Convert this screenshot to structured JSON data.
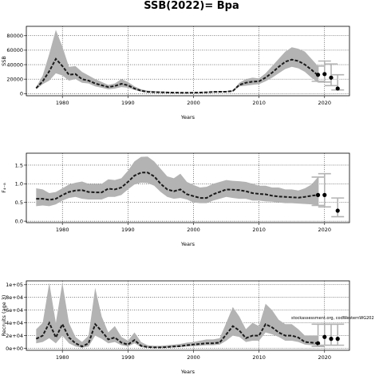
{
  "title": "SSB(2022)= Bpa",
  "chart_data": [
    {
      "type": "line",
      "ylabel": "SSB",
      "xlabel": "Years",
      "xlim": [
        1974.5,
        2023.8
      ],
      "ylim": [
        -3000,
        93000
      ],
      "xticks": [
        1980,
        1990,
        2000,
        2010,
        2020
      ],
      "yticks": [
        0,
        20000,
        40000,
        60000,
        80000
      ],
      "ytick_labels": [
        "0",
        "20000",
        "40000",
        "60000",
        "80000"
      ],
      "grid": true,
      "band": {
        "x": [
          1976,
          1977,
          1978,
          1979,
          1980,
          1981,
          1982,
          1983,
          1984,
          1985,
          1986,
          1987,
          1988,
          1989,
          1990,
          1991,
          1992,
          1993,
          1994,
          1995,
          1996,
          1997,
          1998,
          1999,
          2000,
          2001,
          2002,
          2003,
          2004,
          2005,
          2006,
          2007,
          2008,
          2009,
          2010,
          2011,
          2012,
          2013,
          2014,
          2015,
          2016,
          2017,
          2018,
          2019
        ],
        "upper": [
          9000,
          25000,
          55000,
          88000,
          65000,
          37000,
          38000,
          30000,
          25000,
          20000,
          16000,
          12000,
          14000,
          20000,
          16000,
          10000,
          6000,
          4000,
          3500,
          3000,
          2500,
          2200,
          2000,
          2000,
          2000,
          2200,
          2500,
          3200,
          3500,
          3600,
          4500,
          15000,
          20000,
          22000,
          21000,
          28000,
          38000,
          48000,
          58000,
          64000,
          62000,
          58000,
          48000,
          38000
        ],
        "lower": [
          6000,
          13000,
          18000,
          28000,
          25000,
          18000,
          20000,
          15000,
          14000,
          10000,
          8000,
          6000,
          7000,
          9000,
          8000,
          5000,
          2500,
          1500,
          1200,
          1000,
          900,
          800,
          700,
          700,
          700,
          900,
          1100,
          1500,
          1700,
          1800,
          2500,
          10000,
          11000,
          12000,
          13000,
          17000,
          22000,
          28000,
          34000,
          37000,
          35000,
          30000,
          22000,
          15000
        ]
      },
      "series": [
        {
          "x": [
            1976,
            1977,
            1978,
            1979,
            1980,
            1981,
            1982,
            1983,
            1984,
            1985,
            1986,
            1987,
            1988,
            1989,
            1990,
            1991,
            1992,
            1993,
            1994,
            1995,
            1996,
            1997,
            1998,
            1999,
            2000,
            2001,
            2002,
            2003,
            2004,
            2005,
            2006,
            2007,
            2008,
            2009,
            2010,
            2011,
            2012,
            2013,
            2014,
            2015,
            2016,
            2017,
            2018,
            2019
          ],
          "y": [
            7500,
            17000,
            31000,
            48000,
            38000,
            26000,
            27000,
            20000,
            18000,
            14000,
            11500,
            9000,
            10500,
            13500,
            11500,
            7000,
            4000,
            2400,
            2000,
            1800,
            1500,
            1300,
            1200,
            1200,
            1200,
            1400,
            1700,
            2300,
            2500,
            2600,
            3500,
            12000,
            15000,
            16500,
            17000,
            22000,
            29000,
            37000,
            44000,
            47000,
            45000,
            40000,
            33000,
            25000
          ]
        }
      ],
      "points": [
        {
          "x": 2019,
          "y": 26000,
          "lo": 17000,
          "hi": 38000
        },
        {
          "x": 2020,
          "y": 27000,
          "lo": 16000,
          "hi": 45000
        },
        {
          "x": 2021,
          "y": 22000,
          "lo": 11000,
          "hi": 41000
        },
        {
          "x": 2022,
          "y": 7000,
          "lo": 5000,
          "hi": 26000
        }
      ]
    },
    {
      "type": "line",
      "ylabel": "F₄₋₈",
      "xlabel": "Years",
      "xlim": [
        1974.5,
        2023.8
      ],
      "ylim": [
        -0.04,
        1.82
      ],
      "xticks": [
        1980,
        1990,
        2000,
        2010,
        2020
      ],
      "yticks": [
        0,
        0.5,
        1,
        1.5
      ],
      "ytick_labels": [
        "0.0",
        "0.5",
        "1.0",
        "1.5"
      ],
      "grid": true,
      "band": {
        "x": [
          1976,
          1977,
          1978,
          1979,
          1980,
          1981,
          1982,
          1983,
          1984,
          1985,
          1986,
          1987,
          1988,
          1989,
          1990,
          1991,
          1992,
          1993,
          1994,
          1995,
          1996,
          1997,
          1998,
          1999,
          2000,
          2001,
          2002,
          2003,
          2004,
          2005,
          2006,
          2007,
          2008,
          2009,
          2010,
          2011,
          2012,
          2013,
          2014,
          2015,
          2016,
          2017,
          2018,
          2019
        ],
        "upper": [
          0.88,
          0.85,
          0.75,
          0.78,
          0.88,
          0.98,
          1.03,
          1.06,
          1.0,
          1.0,
          1.0,
          1.12,
          1.1,
          1.15,
          1.35,
          1.6,
          1.72,
          1.73,
          1.6,
          1.4,
          1.2,
          1.15,
          1.27,
          1.05,
          0.97,
          0.9,
          0.92,
          1.0,
          1.05,
          1.1,
          1.08,
          1.07,
          1.05,
          1.0,
          0.95,
          0.95,
          0.9,
          0.9,
          0.85,
          0.85,
          0.82,
          0.88,
          0.98,
          1.18
        ],
        "lower": [
          0.4,
          0.42,
          0.4,
          0.45,
          0.55,
          0.62,
          0.65,
          0.6,
          0.58,
          0.58,
          0.58,
          0.65,
          0.65,
          0.7,
          0.85,
          0.98,
          1.03,
          1.02,
          0.95,
          0.78,
          0.65,
          0.6,
          0.62,
          0.58,
          0.5,
          0.48,
          0.48,
          0.55,
          0.6,
          0.65,
          0.62,
          0.6,
          0.6,
          0.55,
          0.55,
          0.53,
          0.52,
          0.5,
          0.48,
          0.48,
          0.47,
          0.46,
          0.45,
          0.42
        ]
      },
      "series": [
        {
          "x": [
            1976,
            1977,
            1978,
            1979,
            1980,
            1981,
            1982,
            1983,
            1984,
            1985,
            1986,
            1987,
            1988,
            1989,
            1990,
            1991,
            1992,
            1993,
            1994,
            1995,
            1996,
            1997,
            1998,
            1999,
            2000,
            2001,
            2002,
            2003,
            2004,
            2005,
            2006,
            2007,
            2008,
            2009,
            2010,
            2011,
            2012,
            2013,
            2014,
            2015,
            2016,
            2017,
            2018,
            2019
          ],
          "y": [
            0.6,
            0.6,
            0.57,
            0.6,
            0.7,
            0.78,
            0.82,
            0.83,
            0.78,
            0.77,
            0.77,
            0.87,
            0.85,
            0.9,
            1.05,
            1.22,
            1.3,
            1.3,
            1.2,
            1.0,
            0.85,
            0.8,
            0.85,
            0.72,
            0.67,
            0.62,
            0.62,
            0.72,
            0.78,
            0.85,
            0.84,
            0.83,
            0.8,
            0.75,
            0.73,
            0.72,
            0.68,
            0.66,
            0.65,
            0.64,
            0.63,
            0.65,
            0.68,
            0.7
          ]
        }
      ],
      "points": [
        {
          "x": 2019,
          "y": 0.7,
          "lo": 0.42,
          "hi": 1.18
        },
        {
          "x": 2020,
          "y": 0.7,
          "lo": 0.38,
          "hi": 1.27
        },
        {
          "x": 2022,
          "y": 0.28,
          "lo": 0.12,
          "hi": 0.62
        }
      ]
    },
    {
      "type": "line",
      "ylabel": "Recruits (age 3)",
      "xlabel": "Years",
      "xlim": [
        1974.5,
        2023.8
      ],
      "ylim": [
        -3000,
        106000
      ],
      "xticks": [
        1980,
        1990,
        2000,
        2010,
        2020
      ],
      "yticks": [
        0,
        20000,
        40000,
        60000,
        80000,
        100000
      ],
      "ytick_labels": [
        "0e+00",
        "2e+04",
        "4e+04",
        "6e+04",
        "8e+04",
        "1e+05"
      ],
      "grid": true,
      "annotation": "stockassessment.org, codWesternWG202",
      "band": {
        "x": [
          1976,
          1977,
          1978,
          1979,
          1980,
          1981,
          1982,
          1983,
          1984,
          1985,
          1986,
          1987,
          1988,
          1989,
          1990,
          1991,
          1992,
          1993,
          1994,
          1995,
          1996,
          1997,
          1998,
          1999,
          2000,
          2001,
          2002,
          2003,
          2004,
          2005,
          2006,
          2007,
          2008,
          2009,
          2010,
          2011,
          2012,
          2013,
          2014,
          2015,
          2016,
          2017,
          2018,
          2019
        ],
        "upper": [
          30000,
          40000,
          103000,
          40000,
          103000,
          40000,
          18000,
          10000,
          20000,
          95000,
          50000,
          25000,
          35000,
          18000,
          12000,
          25000,
          10000,
          5000,
          4000,
          4000,
          5000,
          6000,
          7000,
          9000,
          10000,
          12000,
          14000,
          14000,
          16000,
          40000,
          65000,
          50000,
          30000,
          40000,
          35000,
          70000,
          60000,
          45000,
          38000,
          38000,
          30000,
          20000,
          20000,
          20000
        ],
        "lower": [
          8000,
          10000,
          16000,
          8000,
          20000,
          8000,
          3000,
          1000,
          3000,
          20000,
          15000,
          8000,
          10000,
          5000,
          3000,
          8000,
          2000,
          1000,
          800,
          800,
          1000,
          1500,
          2000,
          3000,
          3500,
          4000,
          5000,
          5000,
          6000,
          12000,
          20000,
          18000,
          10000,
          12000,
          12000,
          25000,
          22000,
          18000,
          12000,
          12000,
          10000,
          6000,
          5000,
          4000
        ]
      },
      "series": [
        {
          "x": [
            1976,
            1977,
            1978,
            1979,
            1980,
            1981,
            1982,
            1983,
            1984,
            1985,
            1986,
            1987,
            1988,
            1989,
            1990,
            1991,
            1992,
            1993,
            1994,
            1995,
            1996,
            1997,
            1998,
            1999,
            2000,
            2001,
            2002,
            2003,
            2004,
            2005,
            2006,
            2007,
            2008,
            2009,
            2010,
            2011,
            2012,
            2013,
            2014,
            2015,
            2016,
            2017,
            2018,
            2019
          ],
          "y": [
            15000,
            20000,
            40000,
            17000,
            38000,
            17000,
            8000,
            3000,
            8000,
            38000,
            27000,
            14000,
            17000,
            9000,
            6000,
            13000,
            4000,
            2000,
            1500,
            1500,
            2000,
            3000,
            3500,
            5000,
            6000,
            7000,
            8000,
            8000,
            9000,
            22000,
            35000,
            28000,
            16000,
            20000,
            20000,
            38000,
            33000,
            25000,
            20000,
            20000,
            17000,
            10000,
            9000,
            8000
          ]
        }
      ],
      "points": [
        {
          "x": 2019,
          "y": 8000,
          "lo": 3000,
          "hi": 38000
        },
        {
          "x": 2020,
          "y": 18000,
          "lo": 5000,
          "hi": 38000
        },
        {
          "x": 2021,
          "y": 15000,
          "lo": 5000,
          "hi": 38000
        },
        {
          "x": 2022,
          "y": 15000,
          "lo": 5000,
          "hi": 38000
        }
      ]
    }
  ]
}
